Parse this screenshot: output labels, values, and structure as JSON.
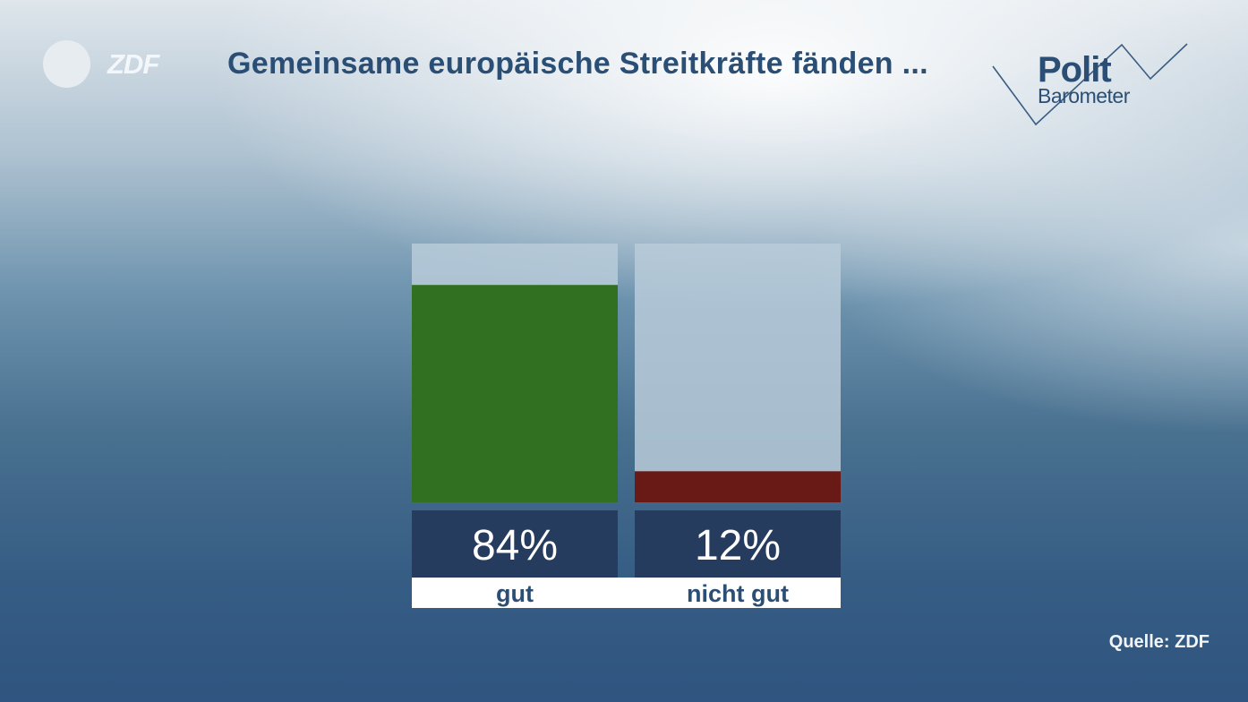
{
  "header": {
    "title": "Gemeinsame europäische Streitkräfte fänden ...",
    "zdf_logo_text": "ZDF",
    "politbarometer_line1": "Polit",
    "politbarometer_line2": "Barometer"
  },
  "footer": {
    "source": "Quelle: ZDF"
  },
  "colors": {
    "gut": "#307020",
    "nicht_gut": "#6a1a16",
    "bar_background": "#b8cbd9",
    "value_box": "#253c5e",
    "label_box": "#ffffff",
    "label_text": "#2b4e75"
  },
  "chart_data": {
    "type": "bar",
    "title": "Gemeinsame europäische Streitkräfte fänden ...",
    "categories": [
      "gut",
      "nicht gut"
    ],
    "values": [
      84,
      12
    ],
    "value_labels": [
      "84%",
      "12%"
    ],
    "ylim": [
      0,
      100
    ],
    "grid": false,
    "legend": "none"
  }
}
